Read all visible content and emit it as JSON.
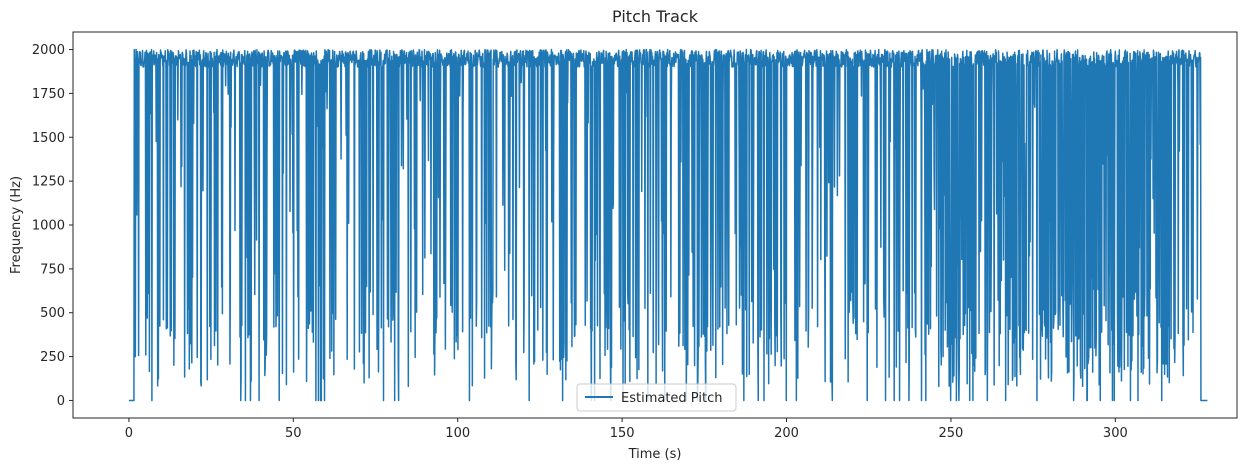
{
  "chart_data": {
    "type": "line",
    "title": "Pitch Track",
    "xlabel": "Time (s)",
    "ylabel": "Frequency (Hz)",
    "xlim": [
      -17,
      337
    ],
    "ylim": [
      -100,
      2100
    ],
    "xticks": [
      0,
      50,
      100,
      150,
      200,
      250,
      300
    ],
    "yticks": [
      0,
      250,
      500,
      750,
      1000,
      1250,
      1500,
      1750,
      2000
    ],
    "grid": false,
    "legend_position": "bottom-center",
    "series": [
      {
        "name": "Estimated Pitch",
        "color": "#1f77b4",
        "x_range": [
          0,
          328
        ],
        "sample_count": 3000,
        "upper_band": [
          1900,
          2000
        ],
        "min": 0,
        "max": 2000,
        "description_points": [
          {
            "x": 0,
            "y": 0
          },
          {
            "x": 1.5,
            "y": 0
          },
          {
            "x": 1.8,
            "y": 1550
          },
          {
            "x": 2,
            "y": 250
          },
          {
            "x": 2.2,
            "y": 2000
          },
          {
            "x": 7,
            "y": 0
          },
          {
            "x": 34,
            "y": 0
          },
          {
            "x": 37,
            "y": 0
          },
          {
            "x": 85,
            "y": 80
          },
          {
            "x": 110,
            "y": 420
          },
          {
            "x": 173,
            "y": 100
          },
          {
            "x": 250,
            "y": 380
          },
          {
            "x": 290,
            "y": 80
          },
          {
            "x": 325.5,
            "y": 1950
          },
          {
            "x": 326,
            "y": 0
          },
          {
            "x": 328,
            "y": 0
          }
        ]
      }
    ]
  }
}
